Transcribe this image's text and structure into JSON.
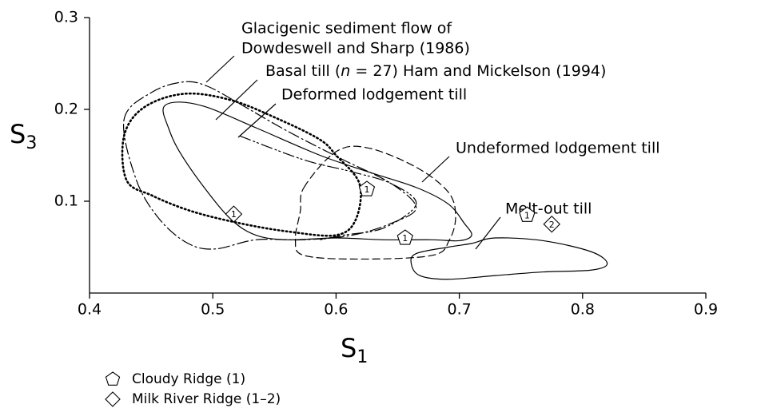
{
  "chart_data": {
    "type": "scatter",
    "xlabel": "S",
    "xlabel_subscript": "1",
    "ylabel": "S",
    "ylabel_subscript": "3",
    "xlim": [
      0.4,
      0.9
    ],
    "xticks": [
      0.4,
      0.5,
      0.6,
      0.7,
      0.8,
      0.9
    ],
    "ylim": [
      0,
      0.3
    ],
    "yticks": [
      0.1,
      0.2,
      0.3
    ],
    "color": "#000000",
    "series": [
      {
        "name": "Cloudy Ridge (1)",
        "marker": "pentagon",
        "x": [
          0.625,
          0.656,
          0.755
        ],
        "values": [
          0.113,
          0.06,
          0.085
        ],
        "point_labels": [
          "1",
          "1",
          "1"
        ]
      },
      {
        "name": "Milk River Ridge (1–2)",
        "marker": "diamond",
        "x": [
          0.517,
          0.775
        ],
        "values": [
          0.086,
          0.075
        ],
        "point_labels": [
          "1",
          "2"
        ]
      }
    ],
    "regions": [
      {
        "style": "dashdot",
        "closed": true,
        "x": [
          0.428,
          0.451,
          0.477,
          0.496,
          0.522,
          0.561,
          0.606,
          0.645,
          0.665,
          0.645,
          0.613,
          0.574,
          0.535,
          0.502,
          0.48,
          0.457,
          0.438
        ],
        "y": [
          0.189,
          0.219,
          0.23,
          0.225,
          0.206,
          0.176,
          0.145,
          0.119,
          0.093,
          0.076,
          0.063,
          0.058,
          0.058,
          0.048,
          0.054,
          0.08,
          0.123
        ]
      },
      {
        "style": "solid",
        "closed": true,
        "x": [
          0.46,
          0.473,
          0.496,
          0.535,
          0.587,
          0.626,
          0.665,
          0.691,
          0.704,
          0.71,
          0.7,
          0.678,
          0.639,
          0.6,
          0.561,
          0.535,
          0.515,
          0.493,
          0.473,
          0.464
        ],
        "y": [
          0.202,
          0.208,
          0.202,
          0.18,
          0.15,
          0.132,
          0.115,
          0.097,
          0.076,
          0.063,
          0.057,
          0.058,
          0.058,
          0.06,
          0.058,
          0.063,
          0.08,
          0.115,
          0.154,
          0.18
        ]
      },
      {
        "style": "dashdotdot",
        "closed": false,
        "x": [
          0.522,
          0.574,
          0.613,
          0.645,
          0.665,
          0.639,
          0.606,
          0.587
        ],
        "y": [
          0.171,
          0.145,
          0.132,
          0.119,
          0.097,
          0.071,
          0.063,
          0.058
        ]
      },
      {
        "style": "dotted",
        "closed": true,
        "x": [
          0.428,
          0.444,
          0.477,
          0.515,
          0.554,
          0.587,
          0.6,
          0.619,
          0.616,
          0.6,
          0.561,
          0.522,
          0.483,
          0.451,
          0.43
        ],
        "y": [
          0.171,
          0.202,
          0.217,
          0.21,
          0.189,
          0.167,
          0.15,
          0.119,
          0.08,
          0.063,
          0.067,
          0.076,
          0.089,
          0.106,
          0.123
        ]
      },
      {
        "style": "dashed",
        "closed": true,
        "x": [
          0.574,
          0.6,
          0.626,
          0.665,
          0.691,
          0.697,
          0.692,
          0.678,
          0.619,
          0.574,
          0.567,
          0.571
        ],
        "y": [
          0.115,
          0.154,
          0.158,
          0.137,
          0.11,
          0.084,
          0.058,
          0.041,
          0.037,
          0.041,
          0.058,
          0.089
        ]
      },
      {
        "style": "solid",
        "closed": true,
        "x": [
          0.665,
          0.691,
          0.71,
          0.729,
          0.768,
          0.807,
          0.82,
          0.807,
          0.768,
          0.729,
          0.691,
          0.668,
          0.661
        ],
        "y": [
          0.043,
          0.05,
          0.054,
          0.06,
          0.057,
          0.045,
          0.032,
          0.025,
          0.023,
          0.019,
          0.015,
          0.019,
          0.032
        ]
      }
    ],
    "annotations": {
      "glacigenic": [
        "Glacigenic sediment flow of",
        "Dowdeswell and Sharp (1986)"
      ],
      "basal": [
        "Basal till (",
        "n",
        " = 27) Ham and Mickelson (1994)"
      ],
      "deformed": "Deformed lodgement till",
      "undeformed": "Undeformed lodgement till",
      "meltout": "Melt-out till"
    }
  }
}
